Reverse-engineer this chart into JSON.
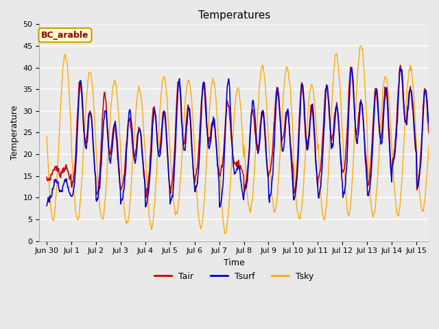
{
  "title": "Temperatures",
  "xlabel": "Time",
  "ylabel": "Temperature",
  "ylim": [
    0,
    50
  ],
  "annotation": "BC_arable",
  "tair_color": "#cc0000",
  "tsurf_color": "#0000cc",
  "tsky_color": "#ffaa00",
  "bg_color": "#e8e8e8",
  "plot_bg": "#ebebeb",
  "xtick_labels": [
    "Jun 30",
    "Jul 1",
    "Jul 2",
    "Jul 3",
    "Jul 4",
    "Jul 5",
    "Jul 6",
    "Jul 7",
    "Jul 8",
    "Jul 9",
    "Jul 10",
    "Jul 11",
    "Jul 12",
    "Jul 13",
    "Jul 14",
    "Jul 15"
  ],
  "xtick_positions": [
    0,
    1,
    2,
    3,
    4,
    5,
    6,
    7,
    8,
    9,
    10,
    11,
    12,
    13,
    14,
    15
  ]
}
